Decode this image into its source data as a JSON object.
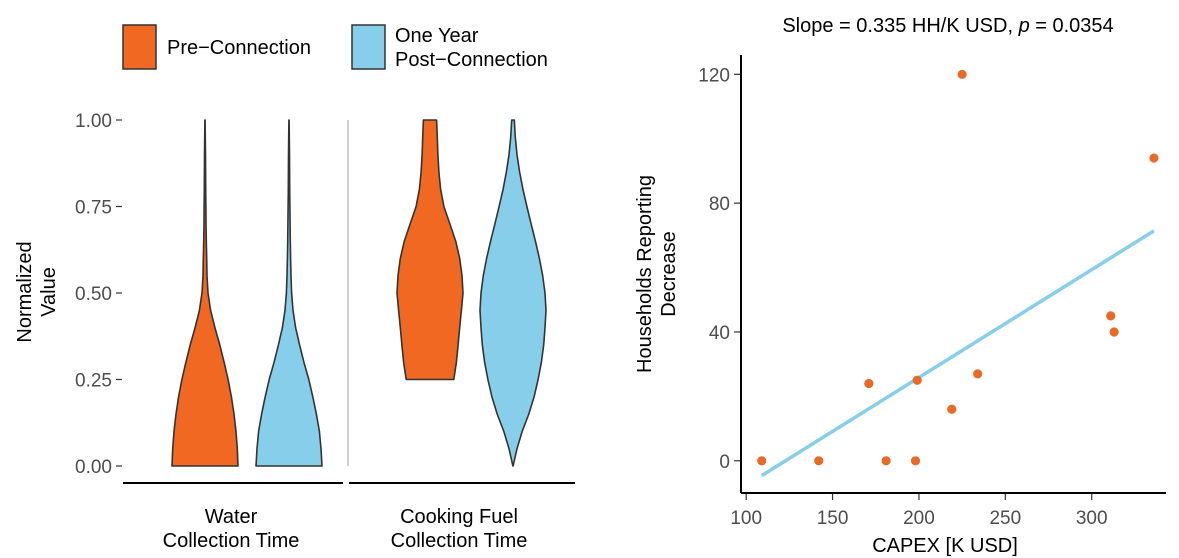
{
  "colors": {
    "pre_connection": "#f16822",
    "post_connection": "#87ceeb",
    "outline": "#333333",
    "axis": "#000000",
    "divider": "#bfbfbf",
    "point": "#e76b26",
    "regression_line": "#87ceeb"
  },
  "chart_data": [
    {
      "type": "violin",
      "ylabel_line1": "Normalized",
      "ylabel_line2": "Value",
      "ylim": [
        0,
        1
      ],
      "yticks": [
        "0.00",
        "0.25",
        "0.50",
        "0.75",
        "1.00"
      ],
      "ytick_values": [
        0,
        0.25,
        0.5,
        0.75,
        1.0
      ],
      "legend": {
        "placement": "top-left",
        "entries": [
          {
            "key": "pre",
            "label_line1": "Pre−Connection",
            "label_line2": ""
          },
          {
            "key": "post",
            "label_line1": "One Year",
            "label_line2": "Post−Connection"
          }
        ]
      },
      "facets": [
        {
          "label_line1": "Water",
          "label_line2": "Collection Time",
          "series": [
            {
              "key": "pre",
              "range": [
                0,
                1
              ],
              "profile": [
                [
                  0,
                  1.0
                ],
                [
                  0.05,
                  0.98
                ],
                [
                  0.1,
                  0.94
                ],
                [
                  0.15,
                  0.88
                ],
                [
                  0.2,
                  0.8
                ],
                [
                  0.25,
                  0.7
                ],
                [
                  0.3,
                  0.58
                ],
                [
                  0.35,
                  0.45
                ],
                [
                  0.4,
                  0.3
                ],
                [
                  0.45,
                  0.17
                ],
                [
                  0.5,
                  0.09
                ],
                [
                  0.55,
                  0.06
                ],
                [
                  0.6,
                  0.05
                ],
                [
                  0.65,
                  0.04
                ],
                [
                  0.7,
                  0.03
                ],
                [
                  0.75,
                  0.026
                ],
                [
                  0.8,
                  0.022
                ],
                [
                  0.85,
                  0.018
                ],
                [
                  0.9,
                  0.014
                ],
                [
                  0.95,
                  0.01
                ],
                [
                  1.0,
                  0.004
                ]
              ]
            },
            {
              "key": "post",
              "range": [
                0,
                1
              ],
              "profile": [
                [
                  0,
                  1.0
                ],
                [
                  0.05,
                  0.97
                ],
                [
                  0.1,
                  0.92
                ],
                [
                  0.15,
                  0.83
                ],
                [
                  0.2,
                  0.72
                ],
                [
                  0.25,
                  0.6
                ],
                [
                  0.3,
                  0.45
                ],
                [
                  0.35,
                  0.32
                ],
                [
                  0.4,
                  0.2
                ],
                [
                  0.45,
                  0.12
                ],
                [
                  0.5,
                  0.08
                ],
                [
                  0.55,
                  0.06
                ],
                [
                  0.6,
                  0.05
                ],
                [
                  0.65,
                  0.04
                ],
                [
                  0.7,
                  0.033
                ],
                [
                  0.75,
                  0.027
                ],
                [
                  0.8,
                  0.022
                ],
                [
                  0.85,
                  0.018
                ],
                [
                  0.9,
                  0.014
                ],
                [
                  0.95,
                  0.01
                ],
                [
                  1.0,
                  0.004
                ]
              ]
            }
          ]
        },
        {
          "label_line1": "Cooking Fuel",
          "label_line2": "Collection Time",
          "series": [
            {
              "key": "pre",
              "range": [
                0.25,
                1
              ],
              "profile": [
                [
                  0.25,
                  0.72
                ],
                [
                  0.3,
                  0.8
                ],
                [
                  0.35,
                  0.85
                ],
                [
                  0.4,
                  0.9
                ],
                [
                  0.45,
                  0.95
                ],
                [
                  0.5,
                  1.0
                ],
                [
                  0.55,
                  0.97
                ],
                [
                  0.6,
                  0.9
                ],
                [
                  0.65,
                  0.78
                ],
                [
                  0.7,
                  0.6
                ],
                [
                  0.75,
                  0.42
                ],
                [
                  0.8,
                  0.32
                ],
                [
                  0.85,
                  0.27
                ],
                [
                  0.9,
                  0.24
                ],
                [
                  0.95,
                  0.22
                ],
                [
                  1.0,
                  0.2
                ]
              ]
            },
            {
              "key": "post",
              "range": [
                0,
                1
              ],
              "profile": [
                [
                  0,
                  0.004
                ],
                [
                  0.05,
                  0.12
                ],
                [
                  0.1,
                  0.28
                ],
                [
                  0.15,
                  0.48
                ],
                [
                  0.2,
                  0.64
                ],
                [
                  0.25,
                  0.76
                ],
                [
                  0.3,
                  0.86
                ],
                [
                  0.35,
                  0.93
                ],
                [
                  0.4,
                  0.97
                ],
                [
                  0.45,
                  1.0
                ],
                [
                  0.5,
                  0.97
                ],
                [
                  0.55,
                  0.9
                ],
                [
                  0.6,
                  0.8
                ],
                [
                  0.65,
                  0.68
                ],
                [
                  0.7,
                  0.55
                ],
                [
                  0.75,
                  0.42
                ],
                [
                  0.8,
                  0.3
                ],
                [
                  0.85,
                  0.2
                ],
                [
                  0.9,
                  0.12
                ],
                [
                  0.95,
                  0.07
                ],
                [
                  1.0,
                  0.04
                ]
              ]
            }
          ]
        }
      ]
    },
    {
      "type": "scatter",
      "title_main": "Slope = 0.335  HH/K  USD, ",
      "title_p": "p",
      "title_tail": " = 0.0354",
      "xlabel": "CAPEX [K USD]",
      "ylabel_line1": "Households Reporting",
      "ylabel_line2": "Decrease",
      "xlim": [
        97,
        343
      ],
      "ylim": [
        -10,
        126
      ],
      "xticks": [
        "100",
        "150",
        "200",
        "250",
        "300"
      ],
      "xtick_values": [
        100,
        150,
        200,
        250,
        300
      ],
      "yticks": [
        "0",
        "40",
        "80",
        "120"
      ],
      "ytick_values": [
        0,
        40,
        80,
        120
      ],
      "points": [
        {
          "x": 109,
          "y": 0
        },
        {
          "x": 142,
          "y": 0
        },
        {
          "x": 171,
          "y": 24
        },
        {
          "x": 181,
          "y": 0
        },
        {
          "x": 198,
          "y": 0
        },
        {
          "x": 199,
          "y": 25
        },
        {
          "x": 219,
          "y": 16
        },
        {
          "x": 225,
          "y": 120
        },
        {
          "x": 234,
          "y": 27
        },
        {
          "x": 311,
          "y": 45
        },
        {
          "x": 313,
          "y": 40
        },
        {
          "x": 336,
          "y": 94
        }
      ],
      "fit_line": {
        "x": [
          109,
          336
        ],
        "y": [
          -4.6,
          71.4
        ]
      }
    }
  ]
}
